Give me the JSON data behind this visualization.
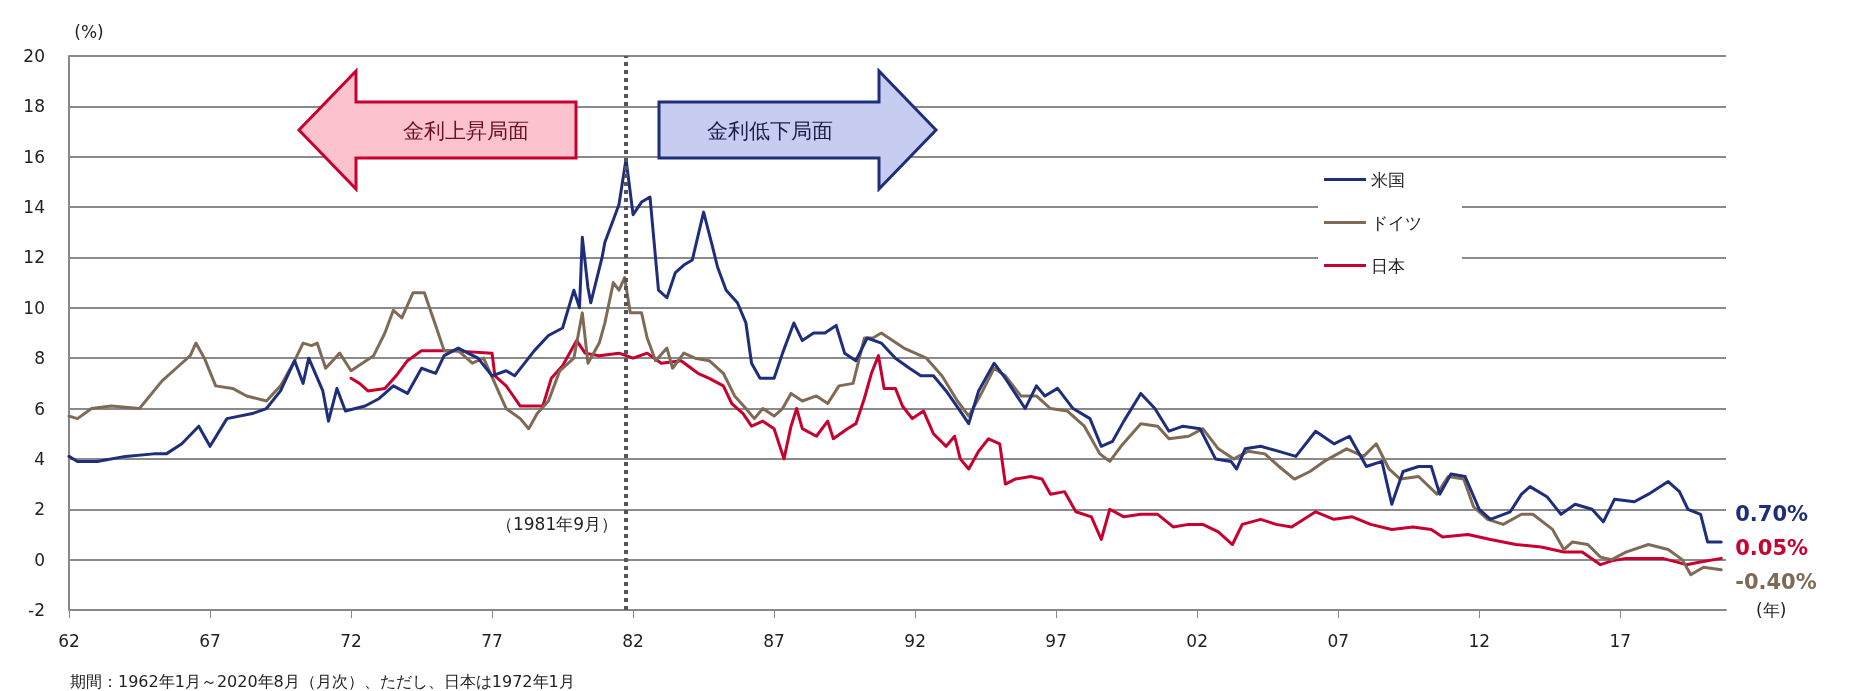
{
  "chart_data": {
    "type": "line",
    "ylabel": "(%)",
    "xlabel": "(年)",
    "annotations": [
      "金利上昇局面",
      "金利低下局面",
      "期間：1962年1月～2020年8月（月次）、ただし、日本は1972年1月"
    ],
    "series": [
      {
        "name": "米国",
        "color": "#1f2e7a",
        "x": [
          1962.0,
          1962.3,
          1963.0,
          1964.0,
          1965.0,
          1965.45,
          1966.0,
          1966.6,
          1967.0,
          1967.6,
          1968.5,
          1969.0,
          1969.5,
          1970.0,
          1970.3,
          1970.5,
          1971.0,
          1971.2,
          1971.5,
          1971.8,
          1972.5,
          1973.0,
          1973.5,
          1974.0,
          1974.5,
          1975.0,
          1975.3,
          1975.8,
          1976.5,
          1977.0,
          1977.5,
          1977.8,
          1978.5,
          1979.0,
          1979.5,
          1979.9,
          1980.1,
          1980.2,
          1980.4,
          1980.5,
          1980.9,
          1981.0,
          1981.3,
          1981.5,
          1981.75,
          1982.0,
          1982.3,
          1982.6,
          1982.9,
          1983.2,
          1983.5,
          1983.8,
          1984.1,
          1984.5,
          1984.8,
          1985.0,
          1985.3,
          1985.7,
          1986.0,
          1986.2,
          1986.5,
          1986.8,
          1987.0,
          1987.3,
          1987.7,
          1988.0,
          1988.4,
          1988.8,
          1989.2,
          1989.5,
          1989.9,
          1990.3,
          1990.8,
          1991.3,
          1991.8,
          1992.2,
          1992.65,
          1993.1,
          1993.6,
          1993.9,
          1994.25,
          1994.8,
          1995.2,
          1995.9,
          1996.3,
          1996.6,
          1997.05,
          1997.6,
          1998.2,
          1998.6,
          1999.0,
          1999.4,
          2000.0,
          2000.5,
          2001.0,
          2001.5,
          2002.1,
          2002.65,
          2003.2,
          2003.4,
          2003.7,
          2004.25,
          2004.9,
          2005.5,
          2006.2,
          2006.85,
          2007.4,
          2008.0,
          2008.55,
          2008.9,
          2009.3,
          2009.85,
          2010.3,
          2010.6,
          2011.0,
          2011.5,
          2012.0,
          2012.4,
          2013.1,
          2013.5,
          2013.8,
          2014.4,
          2014.9,
          2015.4,
          2016.0,
          2016.4,
          2016.8,
          2017.5,
          2018.0,
          2018.7,
          2019.1,
          2019.4,
          2019.85,
          2020.1,
          2020.58
        ],
        "values": [
          4.1,
          3.9,
          3.9,
          4.1,
          4.2,
          4.2,
          4.6,
          5.3,
          4.5,
          5.6,
          5.8,
          6.0,
          6.7,
          7.9,
          7.0,
          8.0,
          6.7,
          5.5,
          6.8,
          5.9,
          6.1,
          6.4,
          6.9,
          6.6,
          7.6,
          7.4,
          8.1,
          8.4,
          8.0,
          7.3,
          7.5,
          7.3,
          8.3,
          8.9,
          9.2,
          10.7,
          10.0,
          12.8,
          10.8,
          10.2,
          12.0,
          12.6,
          13.5,
          14.1,
          15.9,
          13.7,
          14.2,
          14.4,
          10.7,
          10.4,
          11.4,
          11.7,
          11.9,
          13.8,
          12.5,
          11.6,
          10.7,
          10.2,
          9.4,
          7.8,
          7.2,
          7.2,
          7.2,
          8.2,
          9.4,
          8.7,
          9.0,
          9.0,
          9.3,
          8.2,
          7.9,
          8.8,
          8.6,
          8.0,
          7.6,
          7.3,
          7.3,
          6.7,
          5.9,
          5.4,
          6.7,
          7.8,
          7.2,
          6.0,
          6.9,
          6.5,
          6.8,
          6.0,
          5.6,
          4.5,
          4.7,
          5.5,
          6.6,
          6.0,
          5.1,
          5.3,
          5.2,
          4.0,
          3.9,
          3.6,
          4.4,
          4.5,
          4.3,
          4.1,
          5.1,
          4.6,
          4.9,
          3.7,
          3.9,
          2.2,
          3.5,
          3.7,
          3.7,
          2.6,
          3.4,
          3.3,
          2.0,
          1.6,
          1.9,
          2.6,
          2.9,
          2.5,
          1.8,
          2.2,
          2.0,
          1.5,
          2.4,
          2.3,
          2.6,
          3.1,
          2.7,
          2.0,
          1.8,
          0.7,
          0.7
        ],
        "value_labels": [
          null,
          null,
          null,
          null,
          null,
          null,
          null,
          null,
          null,
          null,
          null,
          null,
          null,
          null,
          null,
          null,
          null,
          null,
          null,
          null,
          null,
          null,
          null,
          null,
          null,
          null,
          null,
          null,
          null,
          null,
          null,
          null,
          null,
          null,
          null,
          null,
          null,
          null,
          null,
          null,
          null,
          null,
          null,
          null,
          null,
          null,
          null,
          null,
          null,
          null,
          null,
          null,
          null,
          null,
          null,
          null,
          null,
          null,
          null,
          null,
          null,
          null,
          null,
          null,
          null,
          null,
          null,
          null,
          null,
          null,
          null,
          null,
          null,
          null,
          null,
          null,
          null,
          null,
          null,
          null,
          null,
          null,
          null,
          null,
          null,
          null,
          null,
          null,
          null,
          null,
          null,
          null,
          null,
          null,
          null,
          null,
          null,
          null,
          null,
          null,
          null,
          null,
          null,
          null,
          null,
          null,
          null,
          null,
          null,
          null,
          null,
          null,
          null,
          null,
          null,
          null,
          null,
          null,
          null,
          null,
          null,
          null,
          null,
          null,
          null,
          null,
          null,
          null,
          null,
          null,
          null,
          null,
          null,
          null,
          "0.70%"
        ]
      },
      {
        "name": "ドイツ",
        "color": "#7f6b55",
        "x": [
          1962.0,
          1962.3,
          1962.8,
          1963.5,
          1964.5,
          1965.3,
          1965.8,
          1966.3,
          1966.5,
          1966.8,
          1967.2,
          1967.8,
          1968.3,
          1969.0,
          1969.5,
          1970.0,
          1970.3,
          1970.6,
          1970.8,
          1971.1,
          1971.6,
          1972.0,
          1972.4,
          1972.8,
          1973.2,
          1973.5,
          1973.8,
          1974.2,
          1974.6,
          1975.0,
          1975.3,
          1975.8,
          1976.3,
          1976.7,
          1977.1,
          1977.5,
          1978.0,
          1978.3,
          1978.6,
          1979.0,
          1979.4,
          1979.9,
          1980.2,
          1980.4,
          1980.8,
          1981.0,
          1981.3,
          1981.5,
          1981.7,
          1981.9,
          1982.3,
          1982.5,
          1982.8,
          1983.2,
          1983.4,
          1983.8,
          1984.2,
          1984.7,
          1985.2,
          1985.6,
          1986.0,
          1986.3,
          1986.6,
          1987.0,
          1987.3,
          1987.6,
          1988.0,
          1988.5,
          1988.9,
          1989.3,
          1989.8,
          1990.2,
          1990.5,
          1990.8,
          1991.2,
          1991.6,
          1992.0,
          1992.4,
          1992.95,
          1993.5,
          1993.9,
          1994.35,
          1994.8,
          1995.2,
          1995.75,
          1996.3,
          1996.8,
          1997.4,
          1998.0,
          1998.55,
          1998.9,
          1999.3,
          2000.0,
          2000.6,
          2001.0,
          2001.7,
          2002.2,
          2002.75,
          2003.3,
          2003.8,
          2004.4,
          2004.9,
          2005.45,
          2006.0,
          2006.5,
          2007.3,
          2007.9,
          2008.35,
          2008.8,
          2009.2,
          2009.85,
          2010.5,
          2010.9,
          2011.45,
          2011.8,
          2012.3,
          2012.85,
          2013.5,
          2013.9,
          2014.6,
          2015.0,
          2015.3,
          2015.85,
          2016.3,
          2016.7,
          2017.2,
          2018.0,
          2018.7,
          2019.2,
          2019.5,
          2019.95,
          2020.58
        ],
        "values": [
          5.7,
          5.6,
          6.0,
          6.1,
          6.0,
          7.1,
          7.6,
          8.1,
          8.6,
          8.0,
          6.9,
          6.8,
          6.5,
          6.3,
          6.9,
          7.9,
          8.6,
          8.5,
          8.6,
          7.6,
          8.2,
          7.5,
          7.8,
          8.1,
          9.0,
          9.9,
          9.6,
          10.6,
          10.6,
          9.3,
          8.3,
          8.3,
          7.8,
          8.0,
          7.0,
          6.0,
          5.6,
          5.2,
          5.8,
          6.3,
          7.5,
          8.0,
          9.8,
          7.8,
          8.6,
          9.4,
          11.0,
          10.7,
          11.2,
          9.8,
          9.8,
          8.8,
          7.9,
          8.4,
          7.6,
          8.2,
          8.0,
          7.9,
          7.4,
          6.5,
          6.0,
          5.6,
          6.0,
          5.7,
          6.0,
          6.6,
          6.3,
          6.5,
          6.2,
          6.9,
          7.0,
          8.8,
          8.8,
          9.0,
          8.7,
          8.4,
          8.2,
          8.0,
          7.3,
          6.3,
          5.7,
          6.6,
          7.6,
          7.3,
          6.5,
          6.5,
          6.0,
          5.9,
          5.3,
          4.2,
          3.9,
          4.5,
          5.4,
          5.3,
          4.8,
          4.9,
          5.2,
          4.4,
          4.0,
          4.3,
          4.2,
          3.7,
          3.2,
          3.5,
          3.9,
          4.4,
          4.1,
          4.6,
          3.6,
          3.2,
          3.3,
          2.6,
          3.3,
          3.2,
          2.1,
          1.6,
          1.4,
          1.8,
          1.8,
          1.2,
          0.4,
          0.7,
          0.6,
          0.1,
          0.0,
          0.3,
          0.6,
          0.4,
          0.0,
          -0.6,
          -0.3,
          -0.4
        ],
        "value_labels": [
          null,
          null,
          null,
          null,
          null,
          null,
          null,
          null,
          null,
          null,
          null,
          null,
          null,
          null,
          null,
          null,
          null,
          null,
          null,
          null,
          null,
          null,
          null,
          null,
          null,
          null,
          null,
          null,
          null,
          null,
          null,
          null,
          null,
          null,
          null,
          null,
          null,
          null,
          null,
          null,
          null,
          null,
          null,
          null,
          null,
          null,
          null,
          null,
          null,
          null,
          null,
          null,
          null,
          null,
          null,
          null,
          null,
          null,
          null,
          null,
          null,
          null,
          null,
          null,
          null,
          null,
          null,
          null,
          null,
          null,
          null,
          null,
          null,
          null,
          null,
          null,
          null,
          null,
          null,
          null,
          null,
          null,
          null,
          null,
          null,
          null,
          null,
          null,
          null,
          null,
          null,
          null,
          null,
          null,
          null,
          null,
          null,
          null,
          null,
          null,
          null,
          null,
          null,
          null,
          null,
          null,
          null,
          null,
          null,
          null,
          null,
          null,
          null,
          null,
          null,
          null,
          null,
          null,
          null,
          null,
          null,
          null,
          null,
          null,
          null,
          null,
          null,
          null,
          null,
          null,
          null,
          "-0.40%"
        ]
      },
      {
        "name": "日本",
        "color": "#c8002f",
        "x": [
          1972.0,
          1972.3,
          1972.6,
          1973.2,
          1973.6,
          1974.0,
          1974.5,
          1975.5,
          1977.0,
          1977.1,
          1977.5,
          1978.0,
          1978.8,
          1979.1,
          1979.5,
          1980.0,
          1980.3,
          1980.8,
          1981.5,
          1982.0,
          1982.5,
          1983.0,
          1983.7,
          1984.3,
          1984.7,
          1985.2,
          1985.5,
          1985.9,
          1986.2,
          1986.6,
          1987.0,
          1987.35,
          1987.6,
          1987.8,
          1988.0,
          1988.5,
          1988.9,
          1989.1,
          1989.6,
          1989.9,
          1990.2,
          1990.45,
          1990.7,
          1990.9,
          1991.3,
          1991.55,
          1991.9,
          1992.3,
          1992.65,
          1993.1,
          1993.4,
          1993.6,
          1993.9,
          1994.25,
          1994.6,
          1995.0,
          1995.2,
          1995.55,
          1996.1,
          1996.5,
          1996.8,
          1997.3,
          1997.7,
          1998.25,
          1998.6,
          1998.9,
          1999.4,
          2000.0,
          2000.6,
          2001.15,
          2001.7,
          2002.2,
          2002.75,
          2003.25,
          2003.6,
          2004.25,
          2004.8,
          2005.35,
          2006.2,
          2006.85,
          2007.5,
          2008.15,
          2008.9,
          2009.65,
          2010.3,
          2010.7,
          2011.6,
          2012.4,
          2013.3,
          2014.2,
          2015.0,
          2015.65,
          2016.3,
          2016.7,
          2017.2,
          2018.5,
          2019.35,
          2019.8,
          2020.58
        ],
        "values": [
          7.2,
          7.0,
          6.7,
          6.8,
          7.3,
          7.9,
          8.3,
          8.3,
          8.2,
          7.3,
          6.9,
          6.1,
          6.1,
          7.2,
          7.7,
          8.7,
          8.2,
          8.1,
          8.2,
          8.0,
          8.2,
          7.8,
          7.9,
          7.4,
          7.2,
          6.9,
          6.2,
          5.8,
          5.3,
          5.5,
          5.2,
          4.0,
          5.3,
          6.0,
          5.2,
          4.9,
          5.5,
          4.8,
          5.2,
          5.4,
          6.4,
          7.4,
          8.1,
          6.8,
          6.8,
          6.1,
          5.6,
          5.9,
          5.0,
          4.5,
          4.9,
          4.0,
          3.6,
          4.3,
          4.8,
          4.6,
          3.0,
          3.2,
          3.3,
          3.2,
          2.6,
          2.7,
          1.9,
          1.7,
          0.8,
          2.0,
          1.7,
          1.8,
          1.8,
          1.3,
          1.4,
          1.4,
          1.1,
          0.6,
          1.4,
          1.6,
          1.4,
          1.3,
          1.9,
          1.6,
          1.7,
          1.4,
          1.2,
          1.3,
          1.2,
          0.9,
          1.0,
          0.8,
          0.6,
          0.5,
          0.3,
          0.3,
          -0.2,
          -0.05,
          0.05,
          0.05,
          -0.2,
          -0.1,
          0.05
        ],
        "value_labels": [
          null,
          null,
          null,
          null,
          null,
          null,
          null,
          null,
          null,
          null,
          null,
          null,
          null,
          null,
          null,
          null,
          null,
          null,
          null,
          null,
          null,
          null,
          null,
          null,
          null,
          null,
          null,
          null,
          null,
          null,
          null,
          null,
          null,
          null,
          null,
          null,
          null,
          null,
          null,
          null,
          null,
          null,
          null,
          null,
          null,
          null,
          null,
          null,
          null,
          null,
          null,
          null,
          null,
          null,
          null,
          null,
          null,
          null,
          null,
          null,
          null,
          null,
          null,
          null,
          null,
          null,
          null,
          null,
          null,
          null,
          null,
          null,
          null,
          null,
          null,
          null,
          null,
          null,
          null,
          null,
          null,
          null,
          null,
          null,
          null,
          null,
          null,
          null,
          null,
          null,
          null,
          null,
          null,
          null,
          null,
          null,
          null,
          null,
          "0.05%"
        ]
      }
    ],
    "xlim": [
      1962,
      2020.75
    ],
    "xticks": [
      {
        "value": 1962,
        "label": "62"
      },
      {
        "value": 1967,
        "label": "67"
      },
      {
        "value": 1972,
        "label": "72"
      },
      {
        "value": 1977,
        "label": "77"
      },
      {
        "value": 1982,
        "label": "82"
      },
      {
        "value": 1987,
        "label": "87"
      },
      {
        "value": 1992,
        "label": "92"
      },
      {
        "value": 1997,
        "label": "97"
      },
      {
        "value": 2002,
        "label": "02"
      },
      {
        "value": 2007,
        "label": "07"
      },
      {
        "value": 2012,
        "label": "12"
      },
      {
        "value": 2017,
        "label": "17"
      }
    ],
    "ylim": [
      -2,
      20
    ],
    "yticks": [
      -2,
      0,
      2,
      4,
      6,
      8,
      10,
      12,
      14,
      16,
      18,
      20
    ],
    "ref_lines": [
      {
        "axis": "x",
        "value": 1981.75,
        "label": "（1981年9月）",
        "color": "#555555",
        "line_style": "dotted"
      }
    ],
    "grid": "y",
    "legend": "right",
    "marker": "none",
    "line_style": "solid"
  }
}
